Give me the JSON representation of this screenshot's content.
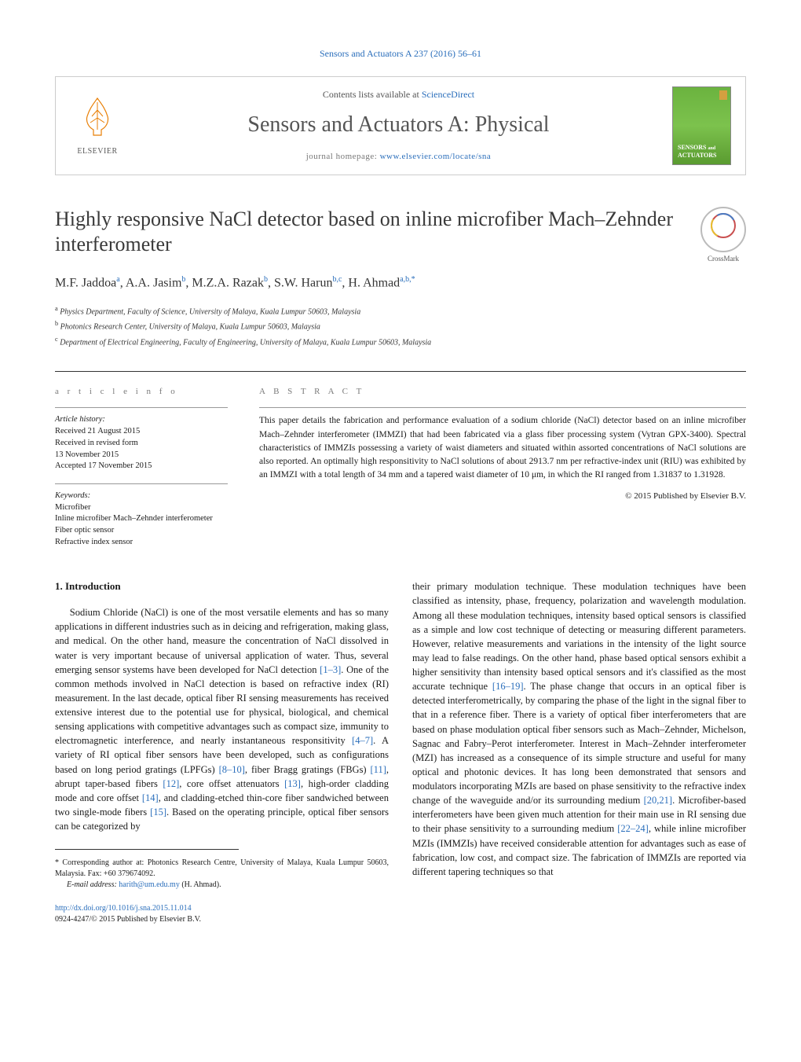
{
  "top_link": "Sensors and Actuators A 237 (2016) 56–61",
  "header": {
    "publisher_name": "ELSEVIER",
    "contents_prefix": "Contents lists available at ",
    "contents_link": "ScienceDirect",
    "journal_name": "Sensors and Actuators A: Physical",
    "homepage_prefix": "journal homepage: ",
    "homepage_url": "www.elsevier.com/locate/sna",
    "cover_line1": "SENSORS",
    "cover_line2": "ACTUATORS",
    "cover_and": "and"
  },
  "article": {
    "title": "Highly responsive NaCl detector based on inline microfiber Mach–Zehnder interferometer",
    "crossmark_label": "CrossMark",
    "authors_html_parts": [
      {
        "name": "M.F. Jaddoa",
        "sup": "a"
      },
      {
        "name": "A.A. Jasim",
        "sup": "b"
      },
      {
        "name": "M.Z.A. Razak",
        "sup": "b"
      },
      {
        "name": "S.W. Harun",
        "sup": "b,c"
      },
      {
        "name": "H. Ahmad",
        "sup": "a,b,*"
      }
    ],
    "affiliations": [
      {
        "sup": "a",
        "text": "Physics Department, Faculty of Science, University of Malaya, Kuala Lumpur 50603, Malaysia"
      },
      {
        "sup": "b",
        "text": "Photonics Research Center, University of Malaya, Kuala Lumpur 50603, Malaysia"
      },
      {
        "sup": "c",
        "text": "Department of Electrical Engineering, Faculty of Engineering, University of Malaya, Kuala Lumpur 50603, Malaysia"
      }
    ]
  },
  "info": {
    "section_label": "a r t i c l e   i n f o",
    "history_label": "Article history:",
    "history_lines": [
      "Received 21 August 2015",
      "Received in revised form",
      "13 November 2015",
      "Accepted 17 November 2015"
    ],
    "keywords_label": "Keywords:",
    "keywords": [
      "Microfiber",
      "Inline microfiber Mach–Zehnder interferometer",
      "Fiber optic sensor",
      "Refractive index sensor"
    ]
  },
  "abstract": {
    "section_label": "A B S T R A C T",
    "text": "This paper details the fabrication and performance evaluation of a sodium chloride (NaCl) detector based on an inline microfiber Mach–Zehnder interferometer (IMMZI) that had been fabricated via a glass fiber processing system (Vytran GPX-3400). Spectral characteristics of IMMZIs possessing a variety of waist diameters and situated within assorted concentrations of NaCl solutions are also reported. An optimally high responsitivity to NaCl solutions of about 2913.7 nm per refractive-index unit (RIU) was exhibited by an IMMZI with a total length of 34 mm and a tapered waist diameter of 10 μm, in which the RI ranged from 1.31837 to 1.31928.",
    "copyright": "© 2015 Published by Elsevier B.V."
  },
  "body": {
    "heading": "1. Introduction",
    "col1": "Sodium Chloride (NaCl) is one of the most versatile elements and has so many applications in different industries such as in deicing and refrigeration, making glass, and medical. On the other hand, measure the concentration of NaCl dissolved in water is very important because of universal application of water. Thus, several emerging sensor systems have been developed for NaCl detection [1–3]. One of the common methods involved in NaCl detection is based on refractive index (RI) measurement. In the last decade, optical fiber RI sensing measurements has received extensive interest due to the potential use for physical, biological, and chemical sensing applications with competitive advantages such as compact size, immunity to electromagnetic interference, and nearly instantaneous responsitivity [4–7]. A variety of RI optical fiber sensors have been developed, such as configurations based on long period gratings (LPFGs) [8–10], fiber Bragg gratings (FBGs) [11], abrupt taper-based fibers [12], core offset attenuators [13], high-order cladding mode and core offset [14], and cladding-etched thin-core fiber sandwiched between two single-mode fibers [15]. Based on the operating principle, optical fiber sensors can be categorized by",
    "col2": "their primary modulation technique. These modulation techniques have been classified as intensity, phase, frequency, polarization and wavelength modulation. Among all these modulation techniques, intensity based optical sensors is classified as a simple and low cost technique of detecting or measuring different parameters. However, relative measurements and variations in the intensity of the light source may lead to false readings. On the other hand, phase based optical sensors exhibit a higher sensitivity than intensity based optical sensors and it's classified as the most accurate technique [16–19]. The phase change that occurs in an optical fiber is detected interferometrically, by comparing the phase of the light in the signal fiber to that in a reference fiber. There is a variety of optical fiber interferometers that are based on phase modulation optical fiber sensors such as Mach–Zehnder, Michelson, Sagnac and Fabry–Perot interferometer. Interest in Mach–Zehnder interferometer (MZI) has increased as a consequence of its simple structure and useful for many optical and photonic devices. It has long been demonstrated that sensors and modulators incorporating MZIs are based on phase sensitivity to the refractive index change of the waveguide and/or its surrounding medium [20,21]. Microfiber-based interferometers have been given much attention for their main use in RI sensing due to their phase sensitivity to a surrounding medium [22–24], while inline microfiber MZIs (IMMZIs) have received considerable attention for advantages such as ease of fabrication, low cost, and compact size. The fabrication of IMMZIs are reported via different tapering techniques so that",
    "refs_col1": {
      "r1": "[1–3]",
      "r2": "[4–7]",
      "r3": "[8–10]",
      "r4": "[11]",
      "r5": "[12]",
      "r6": "[13]",
      "r7": "[14]",
      "r8": "[15]"
    },
    "refs_col2": {
      "r1": "[16–19]",
      "r2": "[20,21]",
      "r3": "[22–24]"
    }
  },
  "footnote": {
    "corresponding": "* Corresponding author at: Photonics Research Centre, University of Malaya, Kuala Lumpur 50603, Malaysia. Fax: +60 379674092.",
    "email_label": "E-mail address: ",
    "email": "harith@um.edu.my",
    "email_person": " (H. Ahmad)."
  },
  "doi": {
    "url": "http://dx.doi.org/10.1016/j.sna.2015.11.014",
    "issn_line": "0924-4247/© 2015 Published by Elsevier B.V."
  },
  "colors": {
    "link": "#2a6ebb",
    "text": "#1a1a1a",
    "muted": "#7a7a7a",
    "border": "#cccccc",
    "rule": "#333333",
    "publisher_orange": "#e87e04",
    "cover_green_top": "#6bb33f",
    "cover_green_bottom": "#5a9b30"
  }
}
